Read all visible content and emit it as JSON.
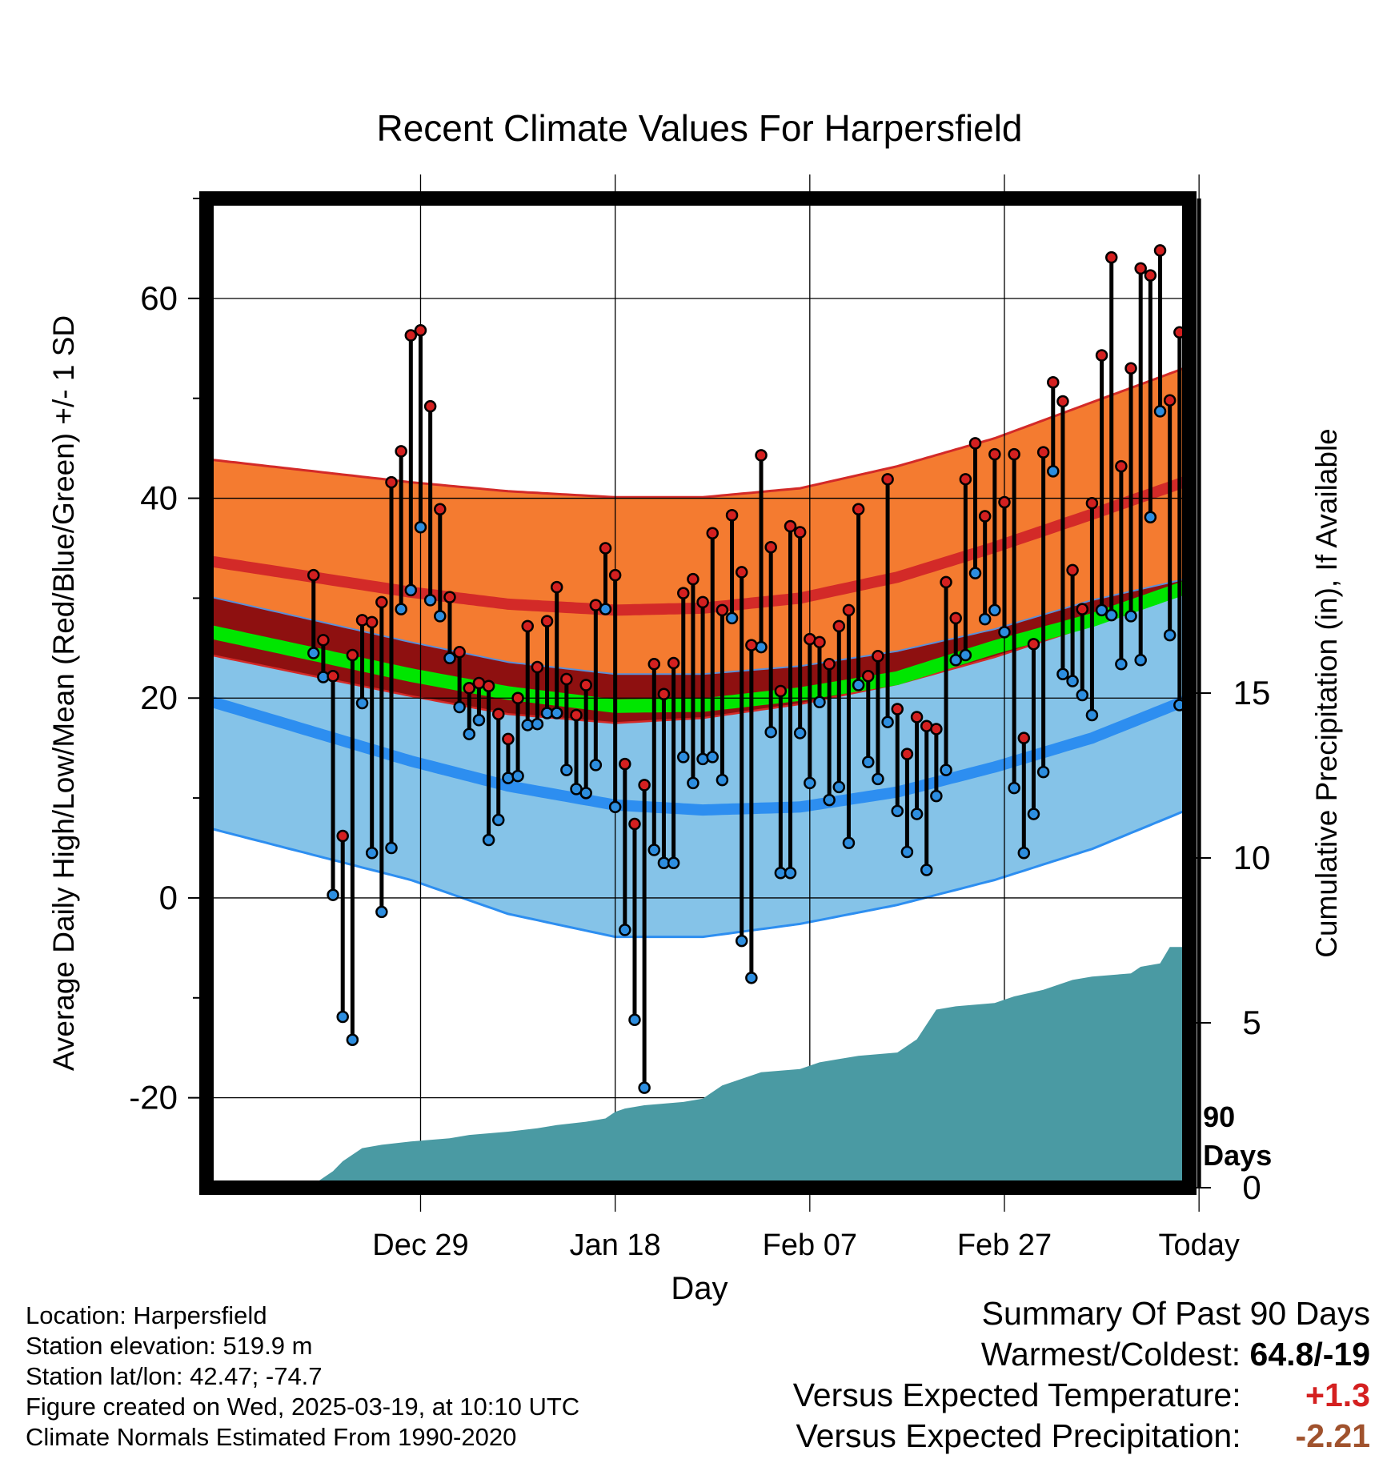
{
  "title": "Recent Climate Values For Harpersfield",
  "colors": {
    "high_band": "#f47b30",
    "high_mean": "#d32a28",
    "mean_band": "#8e1010",
    "mean_line": "#00e600",
    "low_band": "#85c3e8",
    "low_mean": "#2d8ef0",
    "precip": "#4a9aa3",
    "high_marker": "#d42020",
    "low_marker": "#2d8ee0",
    "warm_value": "#d42020",
    "precip_value": "#a0522d"
  },
  "chart_data": {
    "type": "line",
    "title": "Recent Climate Values For Harpersfield",
    "xlabel": "Day",
    "ylabel": "Average Daily High/Low/Mean (Red/Blue/Green) +/- 1 SD",
    "y2label": "Cumulative Precipitation (in), If Available",
    "ylim": [
      -29,
      70
    ],
    "y2lim": [
      0,
      30
    ],
    "xlim": [
      -11,
      90
    ],
    "x_unit": "days since Dec 18",
    "x_ticks": [
      {
        "x": 11,
        "label": "Dec 29"
      },
      {
        "x": 31,
        "label": "Jan 18"
      },
      {
        "x": 51,
        "label": "Feb 07"
      },
      {
        "x": 71,
        "label": "Feb 27"
      },
      {
        "x": 91,
        "label": "Today"
      }
    ],
    "y_ticks": [
      -20,
      0,
      20,
      40,
      60
    ],
    "y2_ticks": [
      0,
      5,
      10,
      15
    ],
    "today_marker": {
      "x": 91,
      "label": "90 Days"
    },
    "grid": true,
    "normals": {
      "x": [
        0,
        10,
        20,
        31,
        40,
        50,
        60,
        70,
        80,
        90,
        100
      ],
      "high_mean": [
        32.1,
        30.6,
        29.4,
        28.8,
        29.0,
        30.0,
        32.1,
        35.1,
        38.4,
        41.8,
        45.7
      ],
      "high_upper": [
        42.7,
        41.6,
        40.7,
        40.1,
        40.1,
        41.0,
        43.2,
        46.0,
        49.6,
        53.2,
        57.1
      ],
      "high_lower": [
        22.2,
        20.2,
        18.4,
        17.5,
        18.0,
        19.4,
        21.4,
        24.1,
        27.3,
        31.1,
        36.4
      ],
      "mean_line": [
        24.4,
        22.3,
        20.5,
        19.2,
        19.3,
        20.4,
        22.0,
        25.1,
        27.8,
        31.2,
        34.4
      ],
      "low_upper": [
        27.8,
        25.6,
        23.6,
        22.4,
        22.4,
        23.2,
        24.7,
        26.9,
        29.8,
        32.0,
        33.0
      ],
      "low_mean": [
        16.6,
        13.7,
        11.2,
        9.3,
        8.8,
        9.1,
        10.6,
        13.1,
        16.0,
        19.9,
        23.5
      ],
      "low_lower": [
        4.3,
        1.8,
        -1.6,
        -3.9,
        -3.9,
        -2.6,
        -0.7,
        1.8,
        4.9,
        8.9,
        13.9
      ]
    },
    "series": [
      {
        "name": "High",
        "values": [
          32.3,
          25.8,
          22.2,
          6.2,
          24.3,
          27.8,
          27.6,
          29.6,
          41.6,
          44.7,
          56.3,
          56.8,
          49.2,
          38.9,
          30.1,
          24.6,
          21.0,
          21.5,
          21.2,
          18.4,
          15.9,
          20.0,
          27.2,
          23.1,
          27.7,
          31.1,
          21.9,
          18.3,
          21.3,
          29.3,
          35.0,
          32.3,
          13.4,
          7.4,
          11.3,
          23.4,
          20.4,
          23.5,
          30.5,
          31.9,
          29.6,
          36.5,
          28.8,
          38.3,
          32.6,
          25.3,
          44.3,
          35.1,
          20.7,
          37.2,
          36.6,
          25.9,
          25.6,
          23.4,
          27.2,
          28.8,
          38.9,
          22.2,
          24.2,
          41.9,
          18.9,
          14.4,
          18.1,
          17.2,
          16.9,
          31.6,
          28.0,
          41.9,
          45.5,
          38.2,
          44.4,
          39.6,
          44.4,
          16.0,
          25.4,
          44.6,
          51.6,
          49.7,
          32.8,
          28.9,
          39.5,
          54.3,
          64.1,
          43.2,
          53.0,
          63.0,
          62.3,
          64.8,
          49.8,
          56.6
        ]
      },
      {
        "name": "Low",
        "values": [
          24.5,
          22.1,
          0.3,
          -11.9,
          -14.2,
          19.5,
          4.5,
          -1.4,
          5.0,
          28.9,
          30.8,
          37.1,
          29.8,
          28.2,
          24.0,
          19.1,
          16.4,
          17.8,
          5.8,
          7.8,
          12.0,
          12.2,
          17.3,
          17.4,
          18.5,
          18.5,
          12.8,
          10.9,
          10.5,
          13.3,
          28.9,
          9.1,
          -3.2,
          -12.2,
          -19.0,
          4.8,
          3.5,
          3.5,
          14.1,
          11.5,
          13.9,
          14.1,
          11.8,
          28.0,
          -4.3,
          -8.0,
          25.1,
          16.6,
          2.5,
          2.5,
          16.5,
          11.5,
          19.6,
          9.8,
          11.1,
          5.5,
          21.3,
          13.6,
          11.9,
          17.6,
          8.7,
          4.6,
          8.4,
          2.8,
          10.2,
          12.8,
          23.8,
          24.3,
          32.5,
          27.9,
          28.8,
          26.6,
          11.0,
          4.5,
          8.4,
          12.6,
          42.7,
          22.4,
          21.7,
          20.3,
          18.3,
          28.8,
          28.3,
          23.4,
          28.2,
          23.8,
          38.1,
          48.7,
          26.3,
          19.3
        ]
      },
      {
        "name": "Cumulative Precipitation",
        "x": [
          -11,
          -1,
          0,
          1,
          2,
          3,
          5,
          7,
          10,
          14,
          16,
          20,
          23,
          25,
          28,
          30,
          31,
          32,
          34,
          38,
          40,
          41,
          42,
          44,
          46,
          50,
          52,
          54,
          56,
          60,
          62,
          64,
          66,
          70,
          72,
          75,
          78,
          80,
          84,
          85,
          87,
          88,
          100
        ],
        "values": [
          0,
          0,
          0.1,
          0.3,
          0.5,
          0.8,
          1.2,
          1.3,
          1.4,
          1.5,
          1.6,
          1.7,
          1.8,
          1.9,
          2.0,
          2.1,
          2.3,
          2.4,
          2.5,
          2.6,
          2.7,
          2.9,
          3.1,
          3.3,
          3.5,
          3.6,
          3.8,
          3.9,
          4.0,
          4.1,
          4.5,
          5.4,
          5.5,
          5.6,
          5.8,
          6.0,
          6.3,
          6.4,
          6.5,
          6.7,
          6.8,
          7.3,
          7.3
        ]
      }
    ]
  },
  "meta": {
    "location": "Location: Harpersfield",
    "elevation": "Station elevation: 519.9 m",
    "latlon": "Station lat/lon: 42.47; -74.7",
    "created": "Figure created on Wed, 2025-03-19, at 10:10 UTC",
    "normals": "Climate Normals Estimated From 1990-2020"
  },
  "summary": {
    "heading": "Summary Of Past 90 Days",
    "warm_cold_label": "Warmest/Coldest:",
    "warm_cold_value": "64.8/-19",
    "temp_label": "Versus Expected Temperature:",
    "temp_value": "+1.3",
    "precip_label": "Versus Expected Precipitation:",
    "precip_value": "-2.21"
  }
}
